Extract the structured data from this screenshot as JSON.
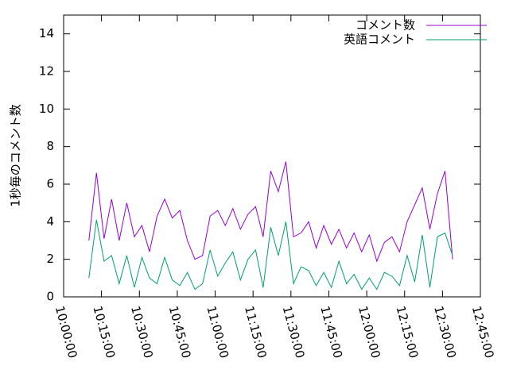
{
  "chart_data": {
    "type": "line",
    "y_label": "1秒毎のコメント数",
    "x": [
      "10:10:00",
      "10:13:00",
      "10:16:00",
      "10:19:00",
      "10:22:00",
      "10:25:00",
      "10:28:00",
      "10:31:00",
      "10:34:00",
      "10:37:00",
      "10:40:00",
      "10:43:00",
      "10:46:00",
      "10:49:00",
      "10:52:00",
      "10:55:00",
      "10:58:00",
      "11:01:00",
      "11:04:00",
      "11:07:00",
      "11:10:00",
      "11:13:00",
      "11:16:00",
      "11:19:00",
      "11:22:00",
      "11:25:00",
      "11:28:00",
      "11:31:00",
      "11:34:00",
      "11:37:00",
      "11:40:00",
      "11:43:00",
      "11:46:00",
      "11:49:00",
      "11:52:00",
      "11:55:00",
      "11:58:00",
      "12:01:00",
      "12:04:00",
      "12:07:00",
      "12:10:00",
      "12:13:00",
      "12:16:00",
      "12:19:00",
      "12:22:00",
      "12:25:00",
      "12:28:00",
      "12:31:00",
      "12:34:00"
    ],
    "series": [
      {
        "name": "コメント数",
        "color": "#9400d3",
        "values": [
          3.0,
          6.6,
          3.1,
          5.2,
          3.0,
          5.0,
          3.2,
          3.8,
          2.4,
          4.3,
          5.2,
          4.2,
          4.6,
          3.0,
          2.0,
          2.2,
          4.3,
          4.6,
          3.8,
          4.7,
          3.6,
          4.4,
          4.8,
          3.2,
          6.7,
          5.6,
          7.2,
          3.2,
          3.4,
          4.0,
          2.6,
          3.8,
          2.8,
          3.6,
          2.6,
          3.4,
          2.4,
          3.3,
          1.9,
          2.9,
          3.2,
          2.4,
          4.0,
          4.9,
          5.8,
          3.6,
          5.5,
          6.7,
          2.0
        ]
      },
      {
        "name": "英語コメント",
        "color": "#009e73",
        "values": [
          1.0,
          4.1,
          1.9,
          2.2,
          0.7,
          2.2,
          0.5,
          2.1,
          1.0,
          0.7,
          2.1,
          0.9,
          0.6,
          1.3,
          0.4,
          0.7,
          2.5,
          1.1,
          1.8,
          2.4,
          0.9,
          2.0,
          2.5,
          0.5,
          3.7,
          2.2,
          4.0,
          0.7,
          1.6,
          1.4,
          0.6,
          1.3,
          0.5,
          1.9,
          0.7,
          1.2,
          0.4,
          1.0,
          0.4,
          1.3,
          1.1,
          0.6,
          2.2,
          0.8,
          3.3,
          0.5,
          3.2,
          3.4,
          2.2
        ]
      }
    ],
    "xlim": [
      "10:00:00",
      "12:45:00"
    ],
    "xticks": [
      "10:00:00",
      "10:15:00",
      "10:30:00",
      "10:45:00",
      "11:00:00",
      "11:15:00",
      "11:30:00",
      "11:45:00",
      "12:00:00",
      "12:15:00",
      "12:30:00",
      "12:45:00"
    ],
    "ylim": [
      0,
      15
    ],
    "yticks": [
      0,
      2,
      4,
      6,
      8,
      10,
      12,
      14
    ],
    "legend": "top-right"
  }
}
